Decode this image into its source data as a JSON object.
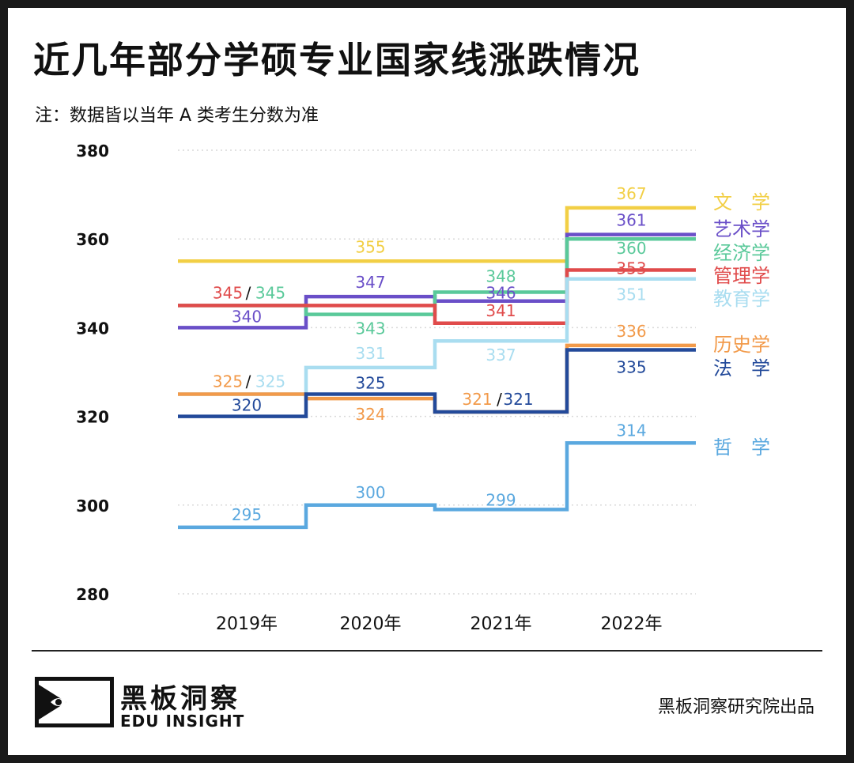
{
  "title": "近几年部分学硕专业国家线涨跌情况",
  "note": "注：数据皆以当年 A 类考生分数为准",
  "brand": {
    "cn": "黑板洞察",
    "en": "EDU INSIGHT",
    "credit": "黑板洞察研究院出品"
  },
  "chart_data": {
    "type": "line",
    "style": "step",
    "title": "近几年部分学硕专业国家线涨跌情况",
    "categories": [
      "2019年",
      "2020年",
      "2021年",
      "2022年"
    ],
    "ylim": [
      280,
      380
    ],
    "yticks": [
      280,
      300,
      320,
      340,
      360,
      380
    ],
    "grid": true,
    "legend_position": "right",
    "series": [
      {
        "name": "文　学",
        "color": "#F2CF45",
        "values": [
          355,
          355,
          355,
          367
        ]
      },
      {
        "name": "艺术学",
        "color": "#6A4FC8",
        "values": [
          340,
          347,
          346,
          361
        ]
      },
      {
        "name": "经济学",
        "color": "#5AC99A",
        "values": [
          345,
          343,
          348,
          360
        ]
      },
      {
        "name": "管理学",
        "color": "#E04B4B",
        "values": [
          345,
          345,
          341,
          353
        ]
      },
      {
        "name": "教育学",
        "color": "#A9DDF0",
        "values": [
          325,
          331,
          337,
          351
        ]
      },
      {
        "name": "历史学",
        "color": "#F29A4A",
        "values": [
          325,
          324,
          321,
          336
        ]
      },
      {
        "name": "法　学",
        "color": "#234A9A",
        "values": [
          320,
          325,
          321,
          335
        ]
      },
      {
        "name": "哲　学",
        "color": "#5AA8DF",
        "values": [
          295,
          300,
          299,
          314
        ]
      }
    ],
    "annotations": [
      {
        "text": "355",
        "series": "文　学",
        "year": 1,
        "y": 355,
        "dy": -18
      },
      {
        "text": "367",
        "series": "文　学",
        "year": 3,
        "y": 367,
        "dy": -18
      },
      {
        "text": "345",
        "series": "管理学",
        "year": 0,
        "y": 345,
        "dy": -16,
        "dx": -24
      },
      {
        "text": "/",
        "series": "",
        "year": 0,
        "y": 345,
        "dy": -16,
        "dx": 2
      },
      {
        "text": "345",
        "series": "经济学",
        "year": 0,
        "y": 345,
        "dy": -16,
        "dx": 30
      },
      {
        "text": "340",
        "series": "艺术学",
        "year": 0,
        "y": 340,
        "dy": -14
      },
      {
        "text": "347",
        "series": "艺术学",
        "year": 1,
        "y": 347,
        "dy": -18
      },
      {
        "text": "343",
        "series": "经济学",
        "year": 1,
        "y": 343,
        "dy": 18
      },
      {
        "text": "348",
        "series": "经济学",
        "year": 2,
        "y": 348,
        "dy": -20
      },
      {
        "text": "346",
        "series": "艺术学",
        "year": 2,
        "y": 346,
        "dy": -10
      },
      {
        "text": "341",
        "series": "管理学",
        "year": 2,
        "y": 341,
        "dy": -16
      },
      {
        "text": "361",
        "series": "艺术学",
        "year": 3,
        "y": 361,
        "dy": -18
      },
      {
        "text": "360",
        "series": "经济学",
        "year": 3,
        "y": 360,
        "dy": 12
      },
      {
        "text": "353",
        "series": "管理学",
        "year": 3,
        "y": 353,
        "dy": -2
      },
      {
        "text": "351",
        "series": "教育学",
        "year": 3,
        "y": 351,
        "dy": 20
      },
      {
        "text": "331",
        "series": "教育学",
        "year": 1,
        "y": 331,
        "dy": -18
      },
      {
        "text": "337",
        "series": "教育学",
        "year": 2,
        "y": 337,
        "dy": 18
      },
      {
        "text": "325",
        "series": "历史学",
        "year": 0,
        "y": 325,
        "dy": -16,
        "dx": -24
      },
      {
        "text": "/",
        "series": "",
        "year": 0,
        "y": 325,
        "dy": -16,
        "dx": 2
      },
      {
        "text": "325",
        "series": "教育学",
        "year": 0,
        "y": 325,
        "dy": -16,
        "dx": 30
      },
      {
        "text": "320",
        "series": "法　学",
        "year": 0,
        "y": 320,
        "dy": -14
      },
      {
        "text": "325",
        "series": "法　学",
        "year": 1,
        "y": 325,
        "dy": -14
      },
      {
        "text": "324",
        "series": "历史学",
        "year": 1,
        "y": 324,
        "dy": 20
      },
      {
        "text": "321",
        "series": "历史学",
        "year": 2,
        "y": 321,
        "dy": -16,
        "dx": -30
      },
      {
        "text": "/",
        "series": "",
        "year": 2,
        "y": 321,
        "dy": -16,
        "dx": -2
      },
      {
        "text": "321",
        "series": "法　学",
        "year": 2,
        "y": 321,
        "dy": -16,
        "dx": 22
      },
      {
        "text": "336",
        "series": "历史学",
        "year": 3,
        "y": 336,
        "dy": -18
      },
      {
        "text": "335",
        "series": "法　学",
        "year": 3,
        "y": 335,
        "dy": 22
      },
      {
        "text": "300",
        "series": "哲　学",
        "year": 1,
        "y": 300,
        "dy": -16
      },
      {
        "text": "295",
        "series": "哲　学",
        "year": 0,
        "y": 295,
        "dy": -16
      },
      {
        "text": "299",
        "series": "哲　学",
        "year": 2,
        "y": 299,
        "dy": -12
      },
      {
        "text": "314",
        "series": "哲　学",
        "year": 3,
        "y": 314,
        "dy": -16
      }
    ]
  }
}
